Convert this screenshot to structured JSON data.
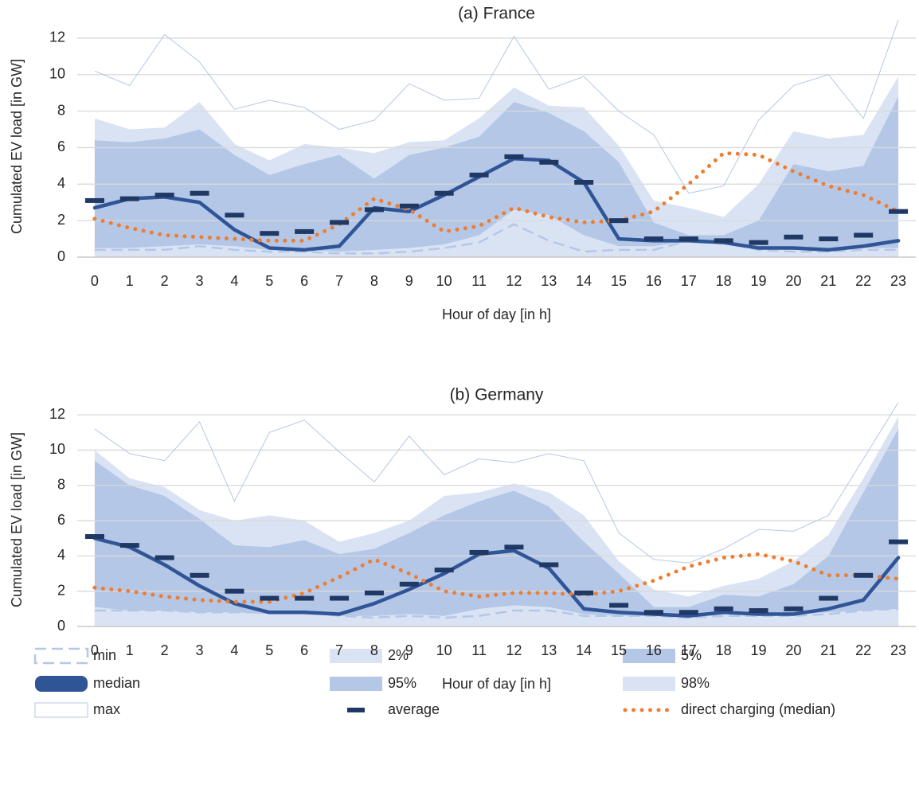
{
  "chart_data": [
    {
      "type": "line",
      "title": "(a) France",
      "x_label": "Hour of day [in h]",
      "y_label": "Cumulated EV load [in GW]",
      "x": [
        0,
        1,
        2,
        3,
        4,
        5,
        6,
        7,
        8,
        9,
        10,
        11,
        12,
        13,
        14,
        15,
        16,
        17,
        18,
        19,
        20,
        21,
        22,
        23
      ],
      "xlim": [
        -0.5,
        23.5
      ],
      "ylim": [
        0,
        13
      ],
      "yticks": [
        0,
        2,
        4,
        6,
        8,
        10,
        12
      ],
      "grid": true,
      "legend": "bottom",
      "series": [
        {
          "name": "min",
          "color": "#b4c7e7",
          "style": "dashed-line",
          "values": [
            0.4,
            0.4,
            0.4,
            0.6,
            0.4,
            0.3,
            0.3,
            0.2,
            0.2,
            0.3,
            0.5,
            0.8,
            1.8,
            0.9,
            0.3,
            0.4,
            0.4,
            0.9,
            0.8,
            0.4,
            0.3,
            0.3,
            0.4,
            0.4
          ]
        },
        {
          "name": "2%",
          "color": "#dae3f3",
          "style": "area",
          "values": [
            0.5,
            0.5,
            0.6,
            0.7,
            0.6,
            0.4,
            0.4,
            0.3,
            0.4,
            0.5,
            0.7,
            1.2,
            2.6,
            2.3,
            1.2,
            0.6,
            0.6,
            0.9,
            0.8,
            0.5,
            0.4,
            0.4,
            0.5,
            0.5
          ]
        },
        {
          "name": "5%",
          "color": "#b4c7e7",
          "style": "area",
          "values": [
            0.6,
            0.7,
            0.8,
            0.9,
            0.7,
            0.5,
            0.5,
            0.5,
            0.5,
            0.6,
            0.8,
            2.2,
            3.0,
            2.5,
            1.4,
            0.9,
            0.8,
            1.0,
            1.0,
            0.6,
            0.5,
            0.5,
            0.6,
            0.7
          ]
        },
        {
          "name": "median",
          "color": "#2f5597",
          "style": "thick-line",
          "values": [
            2.7,
            3.2,
            3.3,
            3.0,
            1.5,
            0.5,
            0.4,
            0.6,
            2.7,
            2.5,
            3.4,
            4.4,
            5.4,
            5.3,
            4.1,
            1.0,
            0.9,
            0.9,
            0.8,
            0.5,
            0.5,
            0.4,
            0.6,
            0.9
          ]
        },
        {
          "name": "95%",
          "color": "#b4c7e7",
          "style": "area",
          "values": [
            6.4,
            6.3,
            6.5,
            7.0,
            5.6,
            4.5,
            5.1,
            5.6,
            4.3,
            5.6,
            6.0,
            6.6,
            8.5,
            7.9,
            6.9,
            5.2,
            1.9,
            1.2,
            1.2,
            2.0,
            5.1,
            4.7,
            5.0,
            8.8
          ]
        },
        {
          "name": "98%",
          "color": "#dae3f3",
          "style": "area",
          "values": [
            7.6,
            7.0,
            7.1,
            8.5,
            6.2,
            5.3,
            6.2,
            6.0,
            5.7,
            6.3,
            6.4,
            7.6,
            9.3,
            8.3,
            8.2,
            6.1,
            3.1,
            2.7,
            2.2,
            4.0,
            6.9,
            6.5,
            6.7,
            9.9
          ]
        },
        {
          "name": "max",
          "color": "#b4c7e7",
          "style": "thin-line",
          "values": [
            10.2,
            9.4,
            12.2,
            10.7,
            8.1,
            8.6,
            8.2,
            7.0,
            7.5,
            9.5,
            8.6,
            8.7,
            12.1,
            9.2,
            9.9,
            8.0,
            6.7,
            3.5,
            3.9,
            7.5,
            9.4,
            10.0,
            7.6,
            13.0
          ]
        },
        {
          "name": "average",
          "color": "#1f3864",
          "style": "dash-markers",
          "values": [
            3.1,
            3.2,
            3.4,
            3.5,
            2.3,
            1.3,
            1.4,
            1.9,
            2.6,
            2.8,
            3.5,
            4.5,
            5.5,
            5.2,
            4.1,
            2.0,
            1.0,
            1.0,
            0.9,
            0.8,
            1.1,
            1.0,
            1.2,
            2.5
          ]
        },
        {
          "name": "direct charging (median)",
          "color": "#ed7d31",
          "style": "dotted-line",
          "values": [
            2.1,
            1.6,
            1.2,
            1.1,
            1.0,
            0.9,
            0.9,
            1.8,
            3.2,
            2.6,
            1.4,
            1.7,
            2.7,
            2.2,
            1.9,
            2.0,
            2.5,
            4.0,
            5.7,
            5.6,
            4.7,
            3.9,
            3.4,
            2.5
          ]
        }
      ]
    },
    {
      "type": "line",
      "title": "(b) Germany",
      "x_label": "Hour of day [in h]",
      "y_label": "Cumulated EV load [in GW]",
      "x": [
        0,
        1,
        2,
        3,
        4,
        5,
        6,
        7,
        8,
        9,
        10,
        11,
        12,
        13,
        14,
        15,
        16,
        17,
        18,
        19,
        20,
        21,
        22,
        23
      ],
      "xlim": [
        -0.5,
        23.5
      ],
      "ylim": [
        0,
        13
      ],
      "yticks": [
        0,
        2,
        4,
        6,
        8,
        10,
        12
      ],
      "grid": true,
      "series": [
        {
          "name": "min",
          "color": "#b4c7e7",
          "style": "dashed-line",
          "values": [
            0.9,
            0.9,
            0.9,
            0.8,
            0.8,
            0.8,
            0.8,
            0.6,
            0.5,
            0.6,
            0.5,
            0.6,
            0.9,
            0.9,
            0.6,
            0.6,
            0.6,
            0.5,
            0.6,
            0.6,
            0.6,
            0.7,
            0.9,
            1.0
          ]
        },
        {
          "name": "2%",
          "color": "#dae3f3",
          "style": "area",
          "values": [
            1.1,
            0.9,
            0.9,
            0.8,
            0.8,
            0.7,
            0.7,
            0.6,
            0.6,
            0.7,
            0.6,
            1.0,
            1.2,
            1.1,
            0.7,
            0.6,
            0.6,
            0.5,
            0.8,
            0.7,
            0.7,
            0.8,
            0.9,
            1.0
          ]
        },
        {
          "name": "5%",
          "color": "#b4c7e7",
          "style": "area",
          "values": [
            1.2,
            1.0,
            0.9,
            0.9,
            0.9,
            0.8,
            0.8,
            0.6,
            0.7,
            0.8,
            0.7,
            1.3,
            1.4,
            1.3,
            0.8,
            0.7,
            0.7,
            0.6,
            0.9,
            0.8,
            0.8,
            0.9,
            1.0,
            1.1
          ]
        },
        {
          "name": "median",
          "color": "#2f5597",
          "style": "thick-line",
          "values": [
            5.0,
            4.5,
            3.5,
            2.3,
            1.3,
            0.8,
            0.8,
            0.7,
            1.3,
            2.1,
            3.0,
            4.1,
            4.3,
            3.3,
            1.0,
            0.8,
            0.7,
            0.6,
            0.8,
            0.7,
            0.7,
            1.0,
            1.5,
            3.9
          ]
        },
        {
          "name": "95%",
          "color": "#b4c7e7",
          "style": "area",
          "values": [
            9.4,
            8.0,
            7.4,
            6.1,
            4.6,
            4.5,
            4.9,
            4.1,
            4.4,
            5.3,
            6.3,
            7.1,
            7.7,
            6.8,
            4.8,
            3.0,
            1.1,
            1.1,
            1.8,
            1.7,
            2.4,
            4.0,
            7.6,
            11.2
          ]
        },
        {
          "name": "98%",
          "color": "#dae3f3",
          "style": "area",
          "values": [
            10.0,
            8.4,
            7.9,
            6.6,
            6.0,
            6.3,
            6.0,
            4.8,
            5.3,
            6.0,
            7.4,
            7.6,
            8.1,
            7.6,
            6.3,
            3.7,
            2.1,
            1.7,
            2.3,
            2.7,
            3.7,
            5.2,
            8.4,
            11.9
          ]
        },
        {
          "name": "max",
          "color": "#b4c7e7",
          "style": "thin-line",
          "values": [
            11.2,
            9.8,
            9.4,
            11.6,
            7.1,
            11.0,
            11.7,
            9.9,
            8.2,
            10.8,
            8.6,
            9.5,
            9.3,
            9.8,
            9.4,
            5.3,
            3.8,
            3.6,
            4.4,
            5.5,
            5.4,
            6.3,
            9.5,
            12.7
          ]
        },
        {
          "name": "average",
          "color": "#1f3864",
          "style": "dash-markers",
          "values": [
            5.1,
            4.6,
            3.9,
            2.9,
            2.0,
            1.6,
            1.6,
            1.6,
            1.9,
            2.4,
            3.2,
            4.2,
            4.5,
            3.5,
            1.9,
            1.2,
            0.8,
            0.8,
            1.0,
            0.9,
            1.0,
            1.6,
            2.9,
            4.8
          ]
        },
        {
          "name": "direct charging (median)",
          "color": "#ed7d31",
          "style": "dotted-line",
          "values": [
            2.2,
            2.0,
            1.7,
            1.5,
            1.4,
            1.4,
            1.9,
            2.8,
            3.8,
            3.0,
            2.0,
            1.7,
            1.9,
            1.9,
            1.8,
            2.0,
            2.6,
            3.4,
            3.9,
            4.1,
            3.7,
            2.9,
            2.9,
            2.7
          ]
        }
      ]
    }
  ]
}
